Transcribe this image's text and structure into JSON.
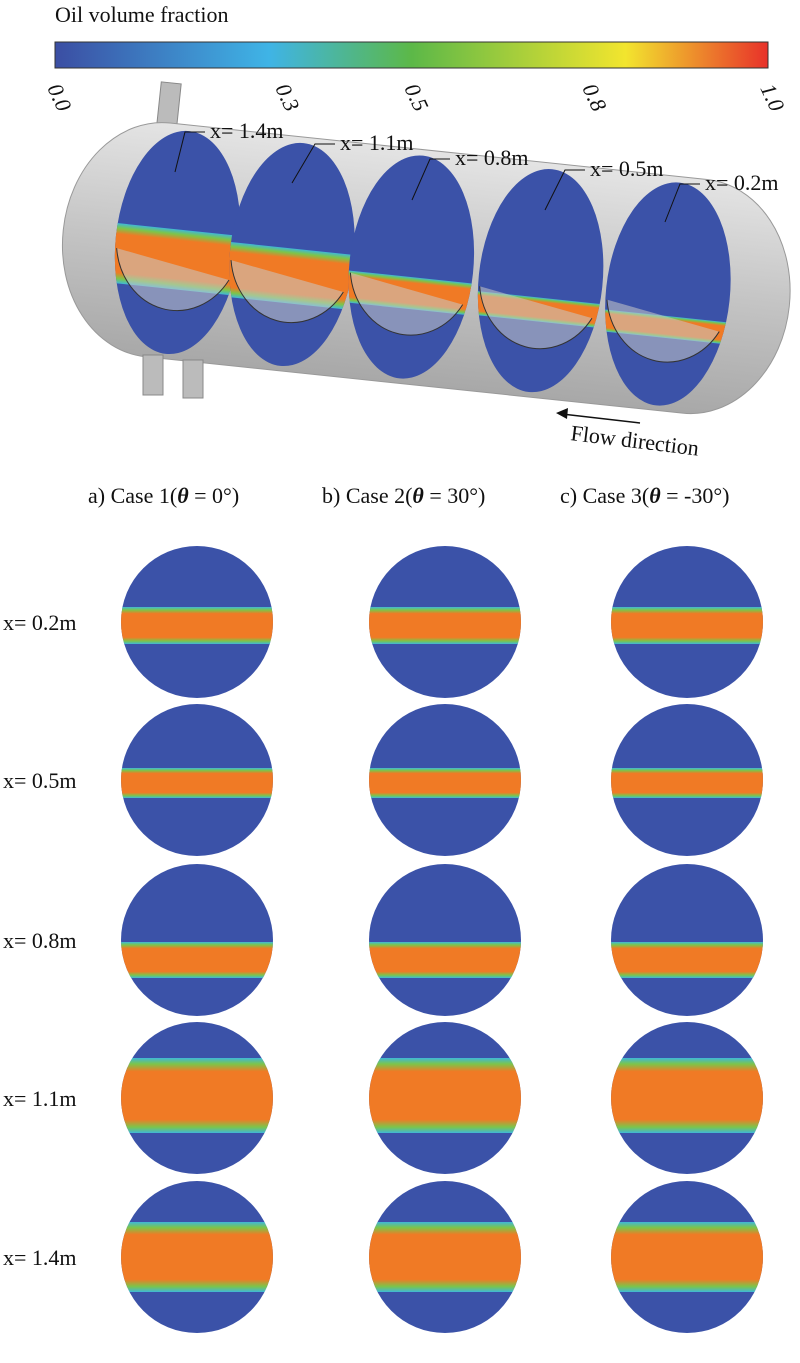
{
  "colorbar": {
    "title": "Oil volume fraction",
    "ticks": [
      "0.0",
      "0.3",
      "0.5",
      "0.8",
      "1.0"
    ]
  },
  "vessel": {
    "sections": [
      "x= 1.4m",
      "x= 1.1m",
      "x= 0.8m",
      "x= 0.5m",
      "x= 0.2m"
    ],
    "flow_label": "Flow direction"
  },
  "columns": [
    {
      "prefix": "a) Case 1(",
      "symbol": "θ",
      "suffix": " = 0°)"
    },
    {
      "prefix": "b) Case 2(",
      "symbol": "θ",
      "suffix": " = 30°)"
    },
    {
      "prefix": "c) Case 3(",
      "symbol": "θ",
      "suffix": " = -30°)"
    }
  ],
  "rows": [
    "x= 0.2m",
    "x= 0.5m",
    "x= 0.8m",
    "x= 1.1m",
    "x= 1.4m"
  ]
}
